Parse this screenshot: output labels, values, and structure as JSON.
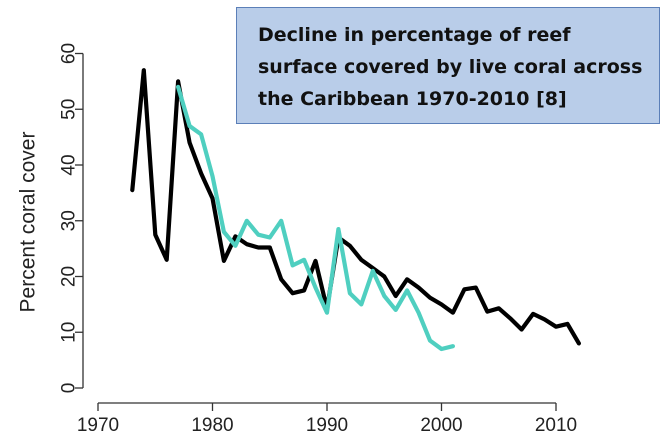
{
  "chart_data": {
    "type": "line",
    "title": "Decline in percentage of reef surface covered by live coral across the Caribbean 1970-2010 [8]",
    "title_lines": [
      "Decline in percentage of reef",
      "surface covered by live coral across",
      "the Caribbean 1970-2010 [8]"
    ],
    "xlabel": "",
    "ylabel": "Percent coral cover",
    "xlim": [
      1970,
      2015
    ],
    "ylim": [
      0,
      60
    ],
    "x_ticks": [
      1970,
      1980,
      1990,
      2000,
      2010
    ],
    "y_ticks": [
      0,
      10,
      20,
      30,
      40,
      50,
      60
    ],
    "grid": false,
    "legend": "none",
    "series": [
      {
        "color": "#000000",
        "points": [
          [
            1973,
            35.5
          ],
          [
            1974,
            57
          ],
          [
            1975,
            27.5
          ],
          [
            1976,
            23
          ],
          [
            1977,
            55
          ],
          [
            1978,
            44
          ],
          [
            1979,
            38.5
          ],
          [
            1980,
            34
          ],
          [
            1981,
            22.8
          ],
          [
            1982,
            27.2
          ],
          [
            1983,
            25.8
          ],
          [
            1984,
            25.2
          ],
          [
            1985,
            25.2
          ],
          [
            1986,
            19.5
          ],
          [
            1987,
            17
          ],
          [
            1988,
            17.5
          ],
          [
            1989,
            22.8
          ],
          [
            1990,
            14.2
          ],
          [
            1991,
            27
          ],
          [
            1992,
            25.5
          ],
          [
            1993,
            23
          ],
          [
            1994,
            21.5
          ],
          [
            1995,
            20
          ],
          [
            1996,
            16.5
          ],
          [
            1997,
            19.5
          ],
          [
            1998,
            18
          ],
          [
            1999,
            16.2
          ],
          [
            2000,
            15
          ],
          [
            2001,
            13.5
          ],
          [
            2002,
            17.7
          ],
          [
            2003,
            18
          ],
          [
            2004,
            13.7
          ],
          [
            2005,
            14.3
          ],
          [
            2006,
            12.5
          ],
          [
            2007,
            10.5
          ],
          [
            2008,
            13.3
          ],
          [
            2009,
            12.3
          ],
          [
            2010,
            11
          ],
          [
            2011,
            11.5
          ],
          [
            2012,
            8
          ]
        ]
      },
      {
        "color": "#4fcfc0",
        "points": [
          [
            1977,
            54
          ],
          [
            1978,
            47
          ],
          [
            1979,
            45.5
          ],
          [
            1980,
            38
          ],
          [
            1981,
            28
          ],
          [
            1982,
            25.5
          ],
          [
            1983,
            30
          ],
          [
            1984,
            27.5
          ],
          [
            1985,
            27
          ],
          [
            1986,
            30
          ],
          [
            1987,
            22
          ],
          [
            1988,
            23
          ],
          [
            1989,
            18
          ],
          [
            1990,
            13.5
          ],
          [
            1991,
            28.5
          ],
          [
            1992,
            17
          ],
          [
            1993,
            15
          ],
          [
            1994,
            21
          ],
          [
            1995,
            16.5
          ],
          [
            1996,
            14
          ],
          [
            1997,
            17.5
          ],
          [
            1998,
            13.5
          ],
          [
            1999,
            8.5
          ],
          [
            2000,
            7
          ],
          [
            2001,
            7.5
          ]
        ]
      }
    ]
  }
}
